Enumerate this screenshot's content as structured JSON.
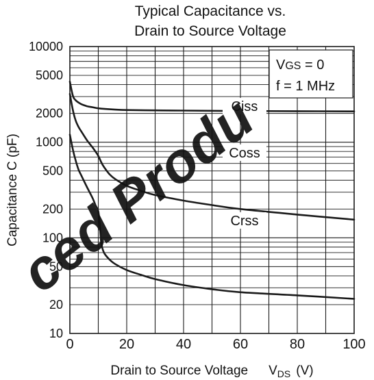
{
  "chart_data": {
    "type": "line",
    "title_lines": [
      "Typical Capacitance vs.",
      "Drain to Source Voltage"
    ],
    "xlabel_main": "Drain to Source Voltage",
    "xlabel_symbol": "V",
    "xlabel_sub": "DS",
    "xlabel_unit": "(V)",
    "ylabel": "Capacitance   C  (pF)",
    "xlim": [
      0,
      100
    ],
    "ylim": [
      10,
      10000
    ],
    "y_scale": "log",
    "x_ticks": [
      0,
      20,
      40,
      60,
      80,
      100
    ],
    "x_tick_labels": [
      "0",
      "20",
      "40",
      "60",
      "80",
      "100"
    ],
    "y_ticks": [
      10,
      20,
      50,
      100,
      200,
      500,
      1000,
      2000,
      5000,
      10000
    ],
    "y_tick_labels": [
      "10",
      "20",
      "50",
      "100",
      "200",
      "500",
      "1000",
      "2000",
      "5000",
      "10000"
    ],
    "grid": true,
    "legend_lines": [
      {
        "main": "V",
        "sub": "GS",
        "rest": " = 0"
      },
      {
        "main": "f = 1 MHz",
        "sub": "",
        "rest": ""
      }
    ],
    "legend_position": "top-right",
    "series": [
      {
        "name": "Ciss",
        "x": [
          0,
          1,
          2,
          4,
          6,
          8,
          10,
          15,
          20,
          30,
          40,
          60,
          80,
          100
        ],
        "y": [
          4300,
          3100,
          2750,
          2500,
          2380,
          2320,
          2260,
          2200,
          2170,
          2150,
          2140,
          2120,
          2110,
          2100
        ]
      },
      {
        "name": "Coss",
        "x": [
          0,
          1,
          2,
          3,
          4,
          6,
          8,
          9,
          10,
          11,
          12,
          14,
          16,
          20,
          25,
          30,
          40,
          50,
          60,
          80,
          100
        ],
        "y": [
          3200,
          2200,
          1700,
          1450,
          1300,
          1050,
          880,
          800,
          720,
          620,
          550,
          460,
          410,
          350,
          310,
          280,
          245,
          220,
          200,
          175,
          155
        ]
      },
      {
        "name": "Crss",
        "x": [
          0,
          1,
          2,
          3,
          4,
          6,
          8,
          9,
          10,
          10.5,
          11,
          12,
          14,
          16,
          20,
          25,
          30,
          40,
          50,
          60,
          80,
          100
        ],
        "y": [
          1200,
          850,
          650,
          520,
          450,
          340,
          260,
          220,
          190,
          140,
          90,
          70,
          59,
          53,
          46,
          41,
          37,
          32,
          29,
          27,
          25,
          23
        ]
      }
    ]
  },
  "watermark": "ced Produ"
}
